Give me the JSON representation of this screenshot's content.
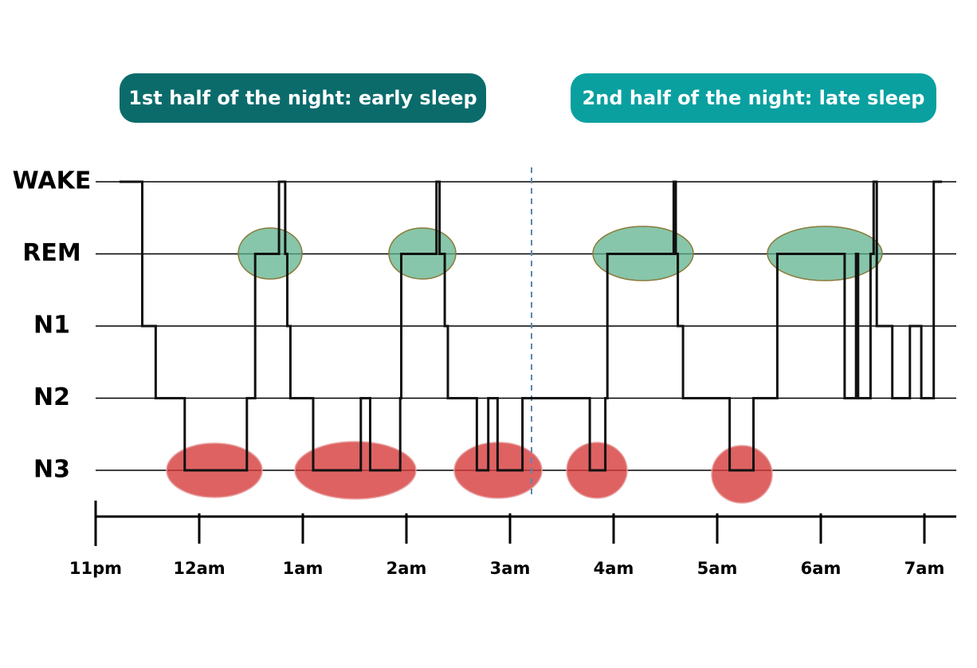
{
  "chart_data": {
    "type": "step",
    "annotations": [
      "1st half of the night: early sleep",
      "2nd half of the night: late sleep"
    ],
    "x": [
      0.23,
      0.45,
      0.58,
      0.86,
      1.46,
      1.54,
      1.77,
      1.83,
      1.85,
      1.88,
      2.1,
      2.56,
      2.65,
      2.94,
      2.95,
      3.29,
      3.32,
      3.37,
      3.4,
      3.68,
      3.79,
      3.88,
      4.12,
      4.77,
      4.92,
      4.94,
      5.58,
      5.6,
      5.62,
      5.67,
      6.12,
      6.35,
      6.58,
      7.23,
      7.34,
      7.36,
      7.48,
      7.51,
      7.54,
      7.69,
      7.86,
      7.97,
      8.09,
      8.17
    ],
    "series": [
      {
        "color": "#111111",
        "values": [
          4,
          2,
          1,
          0,
          1,
          3,
          4,
          3,
          2,
          1,
          0,
          1,
          0,
          1,
          3,
          4,
          3,
          2,
          1,
          0,
          1,
          0,
          1,
          0,
          1,
          3,
          4,
          3,
          2,
          1,
          0,
          1,
          3,
          1,
          3,
          1,
          3,
          4,
          2,
          1,
          2,
          1,
          4,
          4
        ]
      }
    ],
    "xlim": [
      0,
      8.3
    ],
    "xticks": [
      {
        "value": 0,
        "label": "11pm"
      },
      {
        "value": 1,
        "label": "12am"
      },
      {
        "value": 2,
        "label": "1am"
      },
      {
        "value": 3,
        "label": "2am"
      },
      {
        "value": 4,
        "label": "3am"
      },
      {
        "value": 5,
        "label": "4am"
      },
      {
        "value": 6,
        "label": "5am"
      },
      {
        "value": 7,
        "label": "6am"
      },
      {
        "value": 8,
        "label": "7am"
      }
    ],
    "ylim": [
      0,
      4
    ],
    "yticks": [
      {
        "value": 4,
        "label": "WAKE"
      },
      {
        "value": 3,
        "label": "REM"
      },
      {
        "value": 2,
        "label": "N1"
      },
      {
        "value": 1,
        "label": "N2"
      },
      {
        "value": 0,
        "label": "N3"
      }
    ],
    "grid": true
  }
}
